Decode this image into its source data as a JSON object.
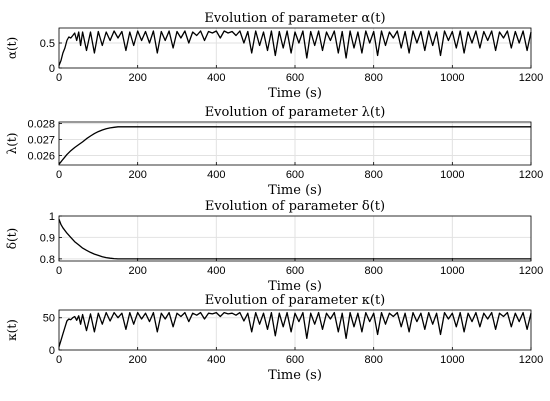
{
  "chart_data": [
    {
      "type": "line",
      "title": "Evolution of parameter α(t)",
      "xlabel": "Time (s)",
      "ylabel": "α(t)",
      "xlim": [
        0,
        1200
      ],
      "ylim": [
        0,
        0.8
      ],
      "xticks": [
        "0",
        "200",
        "400",
        "600",
        "800",
        "1000",
        "1200"
      ],
      "yticks": [
        "0",
        "0.5"
      ],
      "grid": true,
      "series": [
        {
          "x": [
            0,
            5,
            10,
            15,
            20,
            25,
            30,
            35,
            40,
            45,
            50,
            55,
            60,
            70,
            80,
            90,
            100,
            110,
            120,
            130,
            140,
            150,
            160,
            170,
            180,
            190,
            200,
            210,
            220,
            230,
            240,
            250,
            260,
            270,
            280,
            290,
            300,
            310,
            320,
            330,
            340,
            350,
            360,
            370,
            380,
            390,
            400,
            410,
            420,
            430,
            440,
            450,
            460,
            470,
            480,
            490,
            500,
            510,
            520,
            530,
            540,
            550,
            560,
            570,
            580,
            590,
            600,
            610,
            620,
            630,
            640,
            650,
            660,
            670,
            680,
            690,
            700,
            710,
            720,
            730,
            740,
            750,
            760,
            770,
            780,
            790,
            800,
            810,
            820,
            830,
            840,
            850,
            860,
            870,
            880,
            890,
            900,
            910,
            920,
            930,
            940,
            950,
            960,
            970,
            980,
            990,
            1000,
            1010,
            1020,
            1030,
            1040,
            1050,
            1060,
            1070,
            1080,
            1090,
            1100,
            1110,
            1120,
            1130,
            1140,
            1150,
            1160,
            1170,
            1180,
            1190,
            1200
          ],
          "y": [
            0.05,
            0.15,
            0.3,
            0.4,
            0.55,
            0.62,
            0.6,
            0.65,
            0.7,
            0.55,
            0.72,
            0.45,
            0.72,
            0.35,
            0.72,
            0.3,
            0.73,
            0.45,
            0.72,
            0.55,
            0.74,
            0.6,
            0.73,
            0.35,
            0.72,
            0.45,
            0.74,
            0.55,
            0.73,
            0.5,
            0.74,
            0.3,
            0.73,
            0.55,
            0.74,
            0.4,
            0.73,
            0.6,
            0.74,
            0.5,
            0.72,
            0.65,
            0.74,
            0.55,
            0.73,
            0.7,
            0.74,
            0.6,
            0.74,
            0.7,
            0.73,
            0.65,
            0.74,
            0.5,
            0.73,
            0.3,
            0.74,
            0.45,
            0.72,
            0.35,
            0.74,
            0.25,
            0.73,
            0.4,
            0.74,
            0.3,
            0.72,
            0.5,
            0.74,
            0.2,
            0.73,
            0.45,
            0.74,
            0.35,
            0.72,
            0.55,
            0.74,
            0.3,
            0.73,
            0.2,
            0.74,
            0.4,
            0.72,
            0.3,
            0.74,
            0.5,
            0.73,
            0.25,
            0.74,
            0.45,
            0.72,
            0.6,
            0.74,
            0.4,
            0.73,
            0.3,
            0.74,
            0.5,
            0.73,
            0.35,
            0.74,
            0.45,
            0.72,
            0.25,
            0.74,
            0.55,
            0.73,
            0.4,
            0.74,
            0.3,
            0.72,
            0.5,
            0.74,
            0.4,
            0.73,
            0.55,
            0.74,
            0.35,
            0.72,
            0.6,
            0.74,
            0.4,
            0.73,
            0.5,
            0.74,
            0.35,
            0.72
          ]
        }
      ]
    },
    {
      "type": "line",
      "title": "Evolution of parameter λ(t)",
      "xlabel": "Time (s)",
      "ylabel": "λ(t)",
      "xlim": [
        0,
        1200
      ],
      "ylim": [
        0.0254,
        0.0281
      ],
      "xticks": [
        "0",
        "200",
        "400",
        "600",
        "800",
        "1000",
        "1200"
      ],
      "yticks": [
        "0.026",
        "0.027",
        "0.028"
      ],
      "grid": true,
      "series": [
        {
          "x": [
            0,
            5,
            10,
            20,
            30,
            40,
            50,
            60,
            70,
            80,
            90,
            100,
            110,
            120,
            130,
            140,
            150,
            200,
            300,
            400,
            500,
            600,
            700,
            800,
            900,
            1000,
            1100,
            1200
          ],
          "y": [
            0.02545,
            0.0256,
            0.02575,
            0.02605,
            0.0263,
            0.0265,
            0.02668,
            0.02685,
            0.02705,
            0.02722,
            0.02737,
            0.0275,
            0.0276,
            0.02768,
            0.02773,
            0.02777,
            0.0278,
            0.0278,
            0.0278,
            0.0278,
            0.0278,
            0.0278,
            0.0278,
            0.0278,
            0.0278,
            0.0278,
            0.0278,
            0.0278
          ]
        }
      ]
    },
    {
      "type": "line",
      "title": "Evolution of parameter δ(t)",
      "xlabel": "Time (s)",
      "ylabel": "δ(t)",
      "xlim": [
        0,
        1200
      ],
      "ylim": [
        0.79,
        1.0
      ],
      "xticks": [
        "0",
        "200",
        "400",
        "600",
        "800",
        "1000",
        "1200"
      ],
      "yticks": [
        "0.8",
        "0.9",
        "1"
      ],
      "grid": true,
      "series": [
        {
          "x": [
            0,
            5,
            10,
            20,
            30,
            40,
            50,
            60,
            70,
            80,
            90,
            100,
            110,
            120,
            130,
            140,
            150,
            200,
            300,
            400,
            500,
            600,
            700,
            800,
            900,
            1000,
            1100,
            1200
          ],
          "y": [
            0.985,
            0.96,
            0.945,
            0.92,
            0.9,
            0.88,
            0.865,
            0.85,
            0.84,
            0.83,
            0.822,
            0.816,
            0.81,
            0.806,
            0.803,
            0.801,
            0.8,
            0.8,
            0.8,
            0.8,
            0.8,
            0.8,
            0.8,
            0.8,
            0.8,
            0.8,
            0.8,
            0.8
          ]
        }
      ]
    },
    {
      "type": "line",
      "title": "Evolution of parameter κ(t)",
      "xlabel": "Time (s)",
      "ylabel": "κ(t)",
      "xlim": [
        0,
        1200
      ],
      "ylim": [
        0,
        62
      ],
      "xticks": [
        "0",
        "200",
        "400",
        "600",
        "800",
        "1000",
        "1200"
      ],
      "yticks": [
        "0",
        "50"
      ],
      "grid": true,
      "series": [
        {
          "x": [
            0,
            5,
            10,
            15,
            20,
            25,
            30,
            35,
            40,
            45,
            50,
            55,
            60,
            70,
            80,
            90,
            100,
            110,
            120,
            130,
            140,
            150,
            160,
            170,
            180,
            190,
            200,
            210,
            220,
            230,
            240,
            250,
            260,
            270,
            280,
            290,
            300,
            310,
            320,
            330,
            340,
            350,
            360,
            370,
            380,
            390,
            400,
            410,
            420,
            430,
            440,
            450,
            460,
            470,
            480,
            490,
            500,
            510,
            520,
            530,
            540,
            550,
            560,
            570,
            580,
            590,
            600,
            610,
            620,
            630,
            640,
            650,
            660,
            670,
            680,
            690,
            700,
            710,
            720,
            730,
            740,
            750,
            760,
            770,
            780,
            790,
            800,
            810,
            820,
            830,
            840,
            850,
            860,
            870,
            880,
            890,
            900,
            910,
            920,
            930,
            940,
            950,
            960,
            970,
            980,
            990,
            1000,
            1010,
            1020,
            1030,
            1040,
            1050,
            1060,
            1070,
            1080,
            1090,
            1100,
            1110,
            1120,
            1130,
            1140,
            1150,
            1160,
            1170,
            1180,
            1190,
            1200
          ],
          "y": [
            5,
            15,
            25,
            35,
            45,
            48,
            47,
            50,
            52,
            46,
            53,
            40,
            55,
            30,
            56,
            28,
            57,
            40,
            58,
            45,
            58,
            50,
            57,
            32,
            58,
            40,
            58,
            48,
            57,
            44,
            58,
            28,
            57,
            48,
            58,
            36,
            57,
            52,
            58,
            44,
            57,
            54,
            58,
            48,
            57,
            56,
            58,
            52,
            58,
            56,
            57,
            54,
            58,
            45,
            57,
            28,
            58,
            40,
            57,
            32,
            58,
            22,
            57,
            36,
            58,
            28,
            57,
            44,
            58,
            18,
            57,
            40,
            58,
            32,
            57,
            48,
            58,
            28,
            57,
            18,
            58,
            36,
            57,
            28,
            58,
            44,
            57,
            24,
            58,
            40,
            57,
            52,
            58,
            36,
            57,
            28,
            58,
            44,
            57,
            32,
            58,
            40,
            57,
            24,
            58,
            48,
            57,
            36,
            58,
            28,
            57,
            44,
            58,
            36,
            57,
            48,
            58,
            32,
            57,
            52,
            58,
            36,
            57,
            44,
            58,
            32,
            57
          ]
        }
      ]
    }
  ]
}
